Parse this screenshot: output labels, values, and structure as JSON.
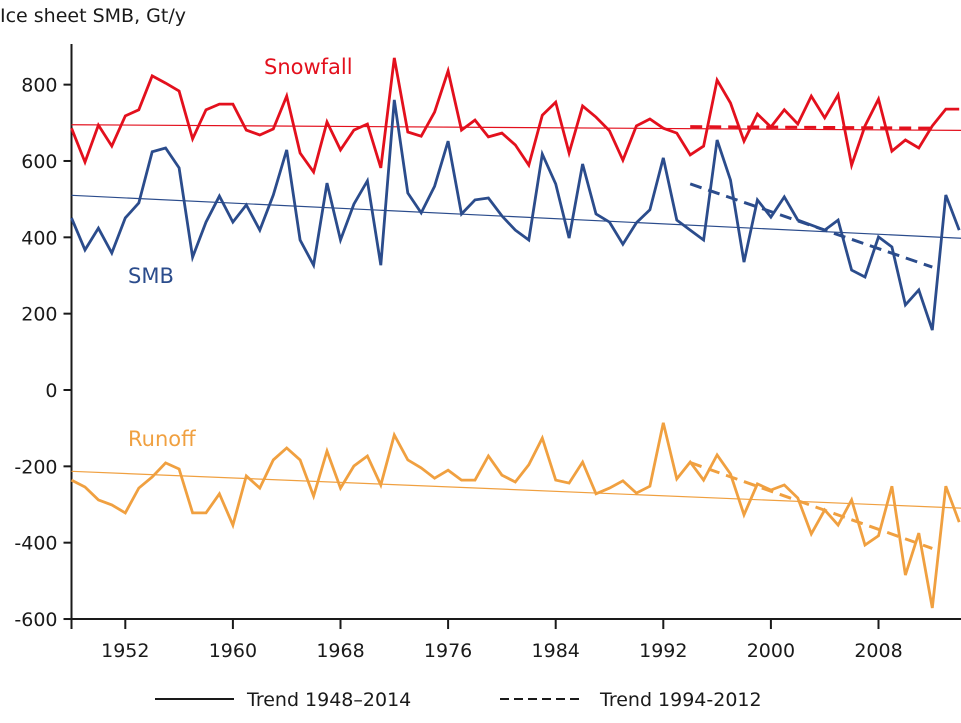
{
  "chart_data": {
    "type": "line",
    "title": "Ice sheet SMB, Gt/y",
    "xlabel": "",
    "ylabel": "Ice sheet SMB, Gt/y",
    "xlim": [
      1948,
      2014.5
    ],
    "ylim": [
      -600,
      900
    ],
    "grid": false,
    "x_ticks": [
      1952,
      1960,
      1968,
      1976,
      1984,
      1992,
      2000,
      2008
    ],
    "x_tick_labels": [
      "1952",
      "1960",
      "1968",
      "1976",
      "1984",
      "1992",
      "2000",
      "2008"
    ],
    "y_ticks": [
      800,
      600,
      400,
      200,
      0,
      -200,
      -400,
      -600
    ],
    "y_tick_labels": [
      "800",
      "600",
      "400",
      "200",
      "0",
      "-200",
      "-400",
      "-600"
    ],
    "x": [
      1948,
      1949,
      1950,
      1951,
      1952,
      1953,
      1954,
      1955,
      1956,
      1957,
      1958,
      1959,
      1960,
      1961,
      1962,
      1963,
      1964,
      1965,
      1966,
      1967,
      1968,
      1969,
      1970,
      1971,
      1972,
      1973,
      1974,
      1975,
      1976,
      1977,
      1978,
      1979,
      1980,
      1981,
      1982,
      1983,
      1984,
      1985,
      1986,
      1987,
      1988,
      1989,
      1990,
      1991,
      1992,
      1993,
      1994,
      1995,
      1996,
      1997,
      1998,
      1999,
      2000,
      2001,
      2002,
      2003,
      2004,
      2005,
      2006,
      2007,
      2008,
      2009,
      2010,
      2011,
      2012,
      2013,
      2014
    ],
    "series": [
      {
        "name": "Snowfall",
        "label": "Snowfall",
        "color": "#e3101d",
        "values": [
          686,
          597,
          694,
          639,
          718,
          734,
          823,
          804,
          783,
          658,
          734,
          749,
          749,
          681,
          668,
          684,
          770,
          621,
          571,
          702,
          629,
          681,
          697,
          582,
          870,
          676,
          665,
          728,
          836,
          681,
          707,
          663,
          673,
          642,
          589,
          720,
          754,
          621,
          744,
          715,
          679,
          602,
          692,
          710,
          686,
          673,
          616,
          639,
          812,
          752,
          652,
          723,
          689,
          734,
          697,
          770,
          713,
          773,
          589,
          692,
          762,
          626,
          655,
          634,
          692,
          736,
          736
        ],
        "trend_1948_2014": [
          695,
          680
        ],
        "trend_1994_2012": [
          690,
          686
        ]
      },
      {
        "name": "SMB",
        "label": "SMB",
        "color": "#2b4c8c",
        "values": [
          451,
          367,
          424,
          359,
          451,
          490,
          624,
          634,
          582,
          348,
          440,
          508,
          440,
          485,
          419,
          511,
          629,
          393,
          327,
          542,
          393,
          487,
          548,
          327,
          760,
          516,
          464,
          534,
          652,
          461,
          498,
          503,
          456,
          419,
          393,
          618,
          540,
          398,
          592,
          461,
          440,
          382,
          438,
          472,
          608,
          445,
          419,
          393,
          655,
          550,
          335,
          498,
          453,
          506,
          445,
          432,
          419,
          445,
          314,
          296,
          401,
          375,
          223,
          262,
          157,
          511,
          419
        ],
        "trend_1948_2014": [
          510,
          397
        ],
        "trend_1994_2012": [
          540,
          322
        ]
      },
      {
        "name": "Runoff",
        "label": "Runoff",
        "color": "#f0a040",
        "values": [
          -236,
          -254,
          -288,
          -301,
          -322,
          -257,
          -228,
          -191,
          -207,
          -322,
          -322,
          -272,
          -354,
          -225,
          -257,
          -183,
          -152,
          -183,
          -278,
          -160,
          -257,
          -199,
          -173,
          -249,
          -118,
          -183,
          -204,
          -231,
          -210,
          -236,
          -236,
          -173,
          -223,
          -241,
          -196,
          -126,
          -236,
          -244,
          -189,
          -272,
          -257,
          -238,
          -270,
          -252,
          -86,
          -233,
          -189,
          -236,
          -170,
          -220,
          -327,
          -246,
          -262,
          -249,
          -283,
          -377,
          -314,
          -354,
          -288,
          -406,
          -382,
          -252,
          -485,
          -375,
          -571,
          -252,
          -346
        ],
        "trend_1948_2014": [
          -213,
          -310
        ],
        "trend_1994_2012": [
          -190,
          -415
        ]
      }
    ],
    "legend": {
      "placement": "bottom",
      "entries": [
        {
          "label": "Trend 1948–2014",
          "style": "solid"
        },
        {
          "label": "Trend 1994-2012",
          "style": "dashed"
        }
      ]
    }
  }
}
